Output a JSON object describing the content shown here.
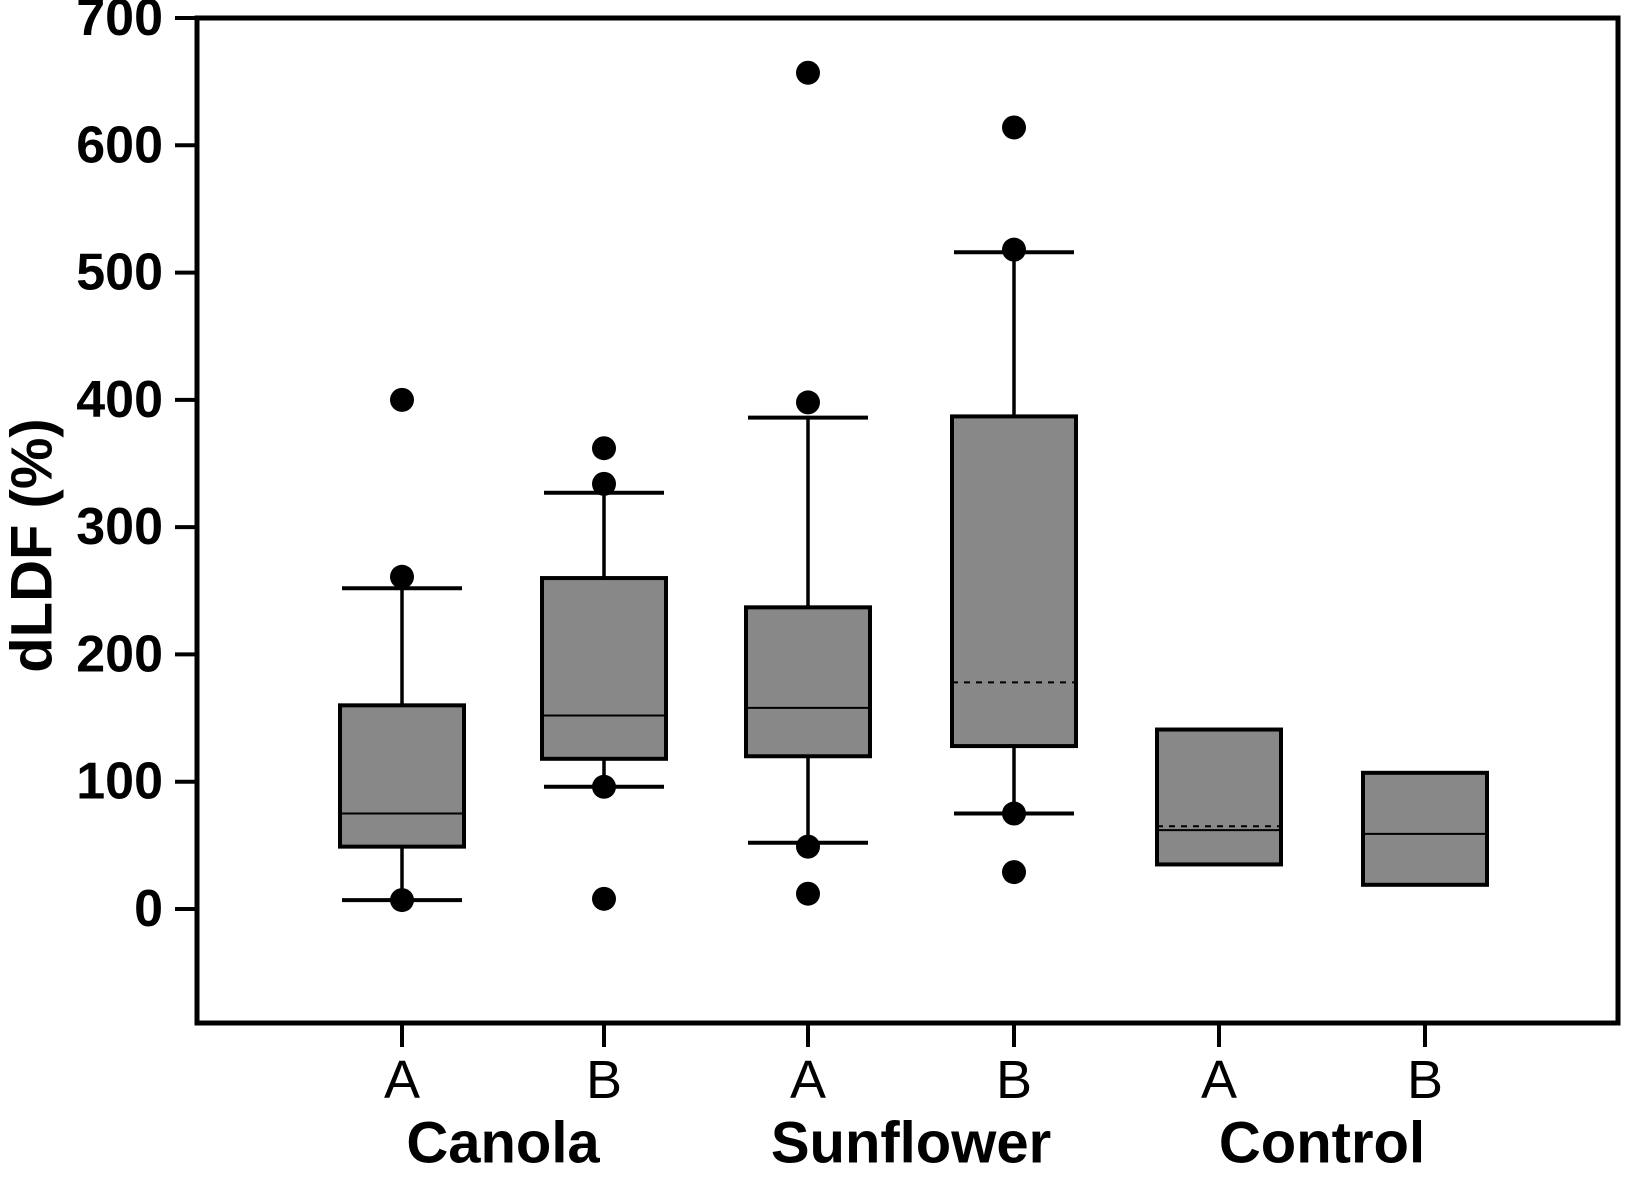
{
  "chart_data": {
    "type": "boxplot",
    "title": "",
    "ylabel": "dLDF (%)",
    "xlabel": "",
    "ylim": [
      -90,
      700
    ],
    "yticks": [
      0,
      100,
      200,
      300,
      400,
      500,
      600,
      700
    ],
    "grid": false,
    "legend": null,
    "groups": [
      {
        "label": "Canola"
      },
      {
        "label": "Sunflower"
      },
      {
        "label": "Control"
      }
    ],
    "boxes": [
      {
        "group": "Canola",
        "category": "A",
        "q1": 49,
        "median": 75,
        "q3": 160,
        "whisker_low": 7,
        "whisker_high": 252,
        "outliers": [
          400,
          261,
          7
        ],
        "median_style": "solid"
      },
      {
        "group": "Canola",
        "category": "B",
        "q1": 118,
        "median": 152,
        "q3": 260,
        "whisker_low": 96,
        "whisker_high": 327,
        "outliers": [
          362,
          334,
          96,
          8
        ],
        "median_style": "solid"
      },
      {
        "group": "Sunflower",
        "category": "A",
        "q1": 120,
        "median": 158,
        "q3": 237,
        "whisker_low": 52,
        "whisker_high": 386,
        "outliers": [
          657,
          398,
          49,
          12
        ],
        "median_style": "solid"
      },
      {
        "group": "Sunflower",
        "category": "B",
        "q1": 128,
        "median": 178,
        "q3": 387,
        "whisker_low": 75,
        "whisker_high": 516,
        "outliers": [
          614,
          518,
          75,
          29
        ],
        "median_style": "dashed"
      },
      {
        "group": "Control",
        "category": "A",
        "q1": 35,
        "median": 62,
        "q3": 141,
        "whisker_low": null,
        "whisker_high": null,
        "outliers": [],
        "mean_dashed": 65,
        "median_style": "solid"
      },
      {
        "group": "Control",
        "category": "B",
        "q1": 19,
        "median": 59,
        "q3": 107,
        "whisker_low": null,
        "whisker_high": null,
        "outliers": [],
        "median_style": "solid"
      }
    ],
    "style": {
      "box_fill": "#888888",
      "line_color": "#000000",
      "background": "#ffffff"
    }
  }
}
